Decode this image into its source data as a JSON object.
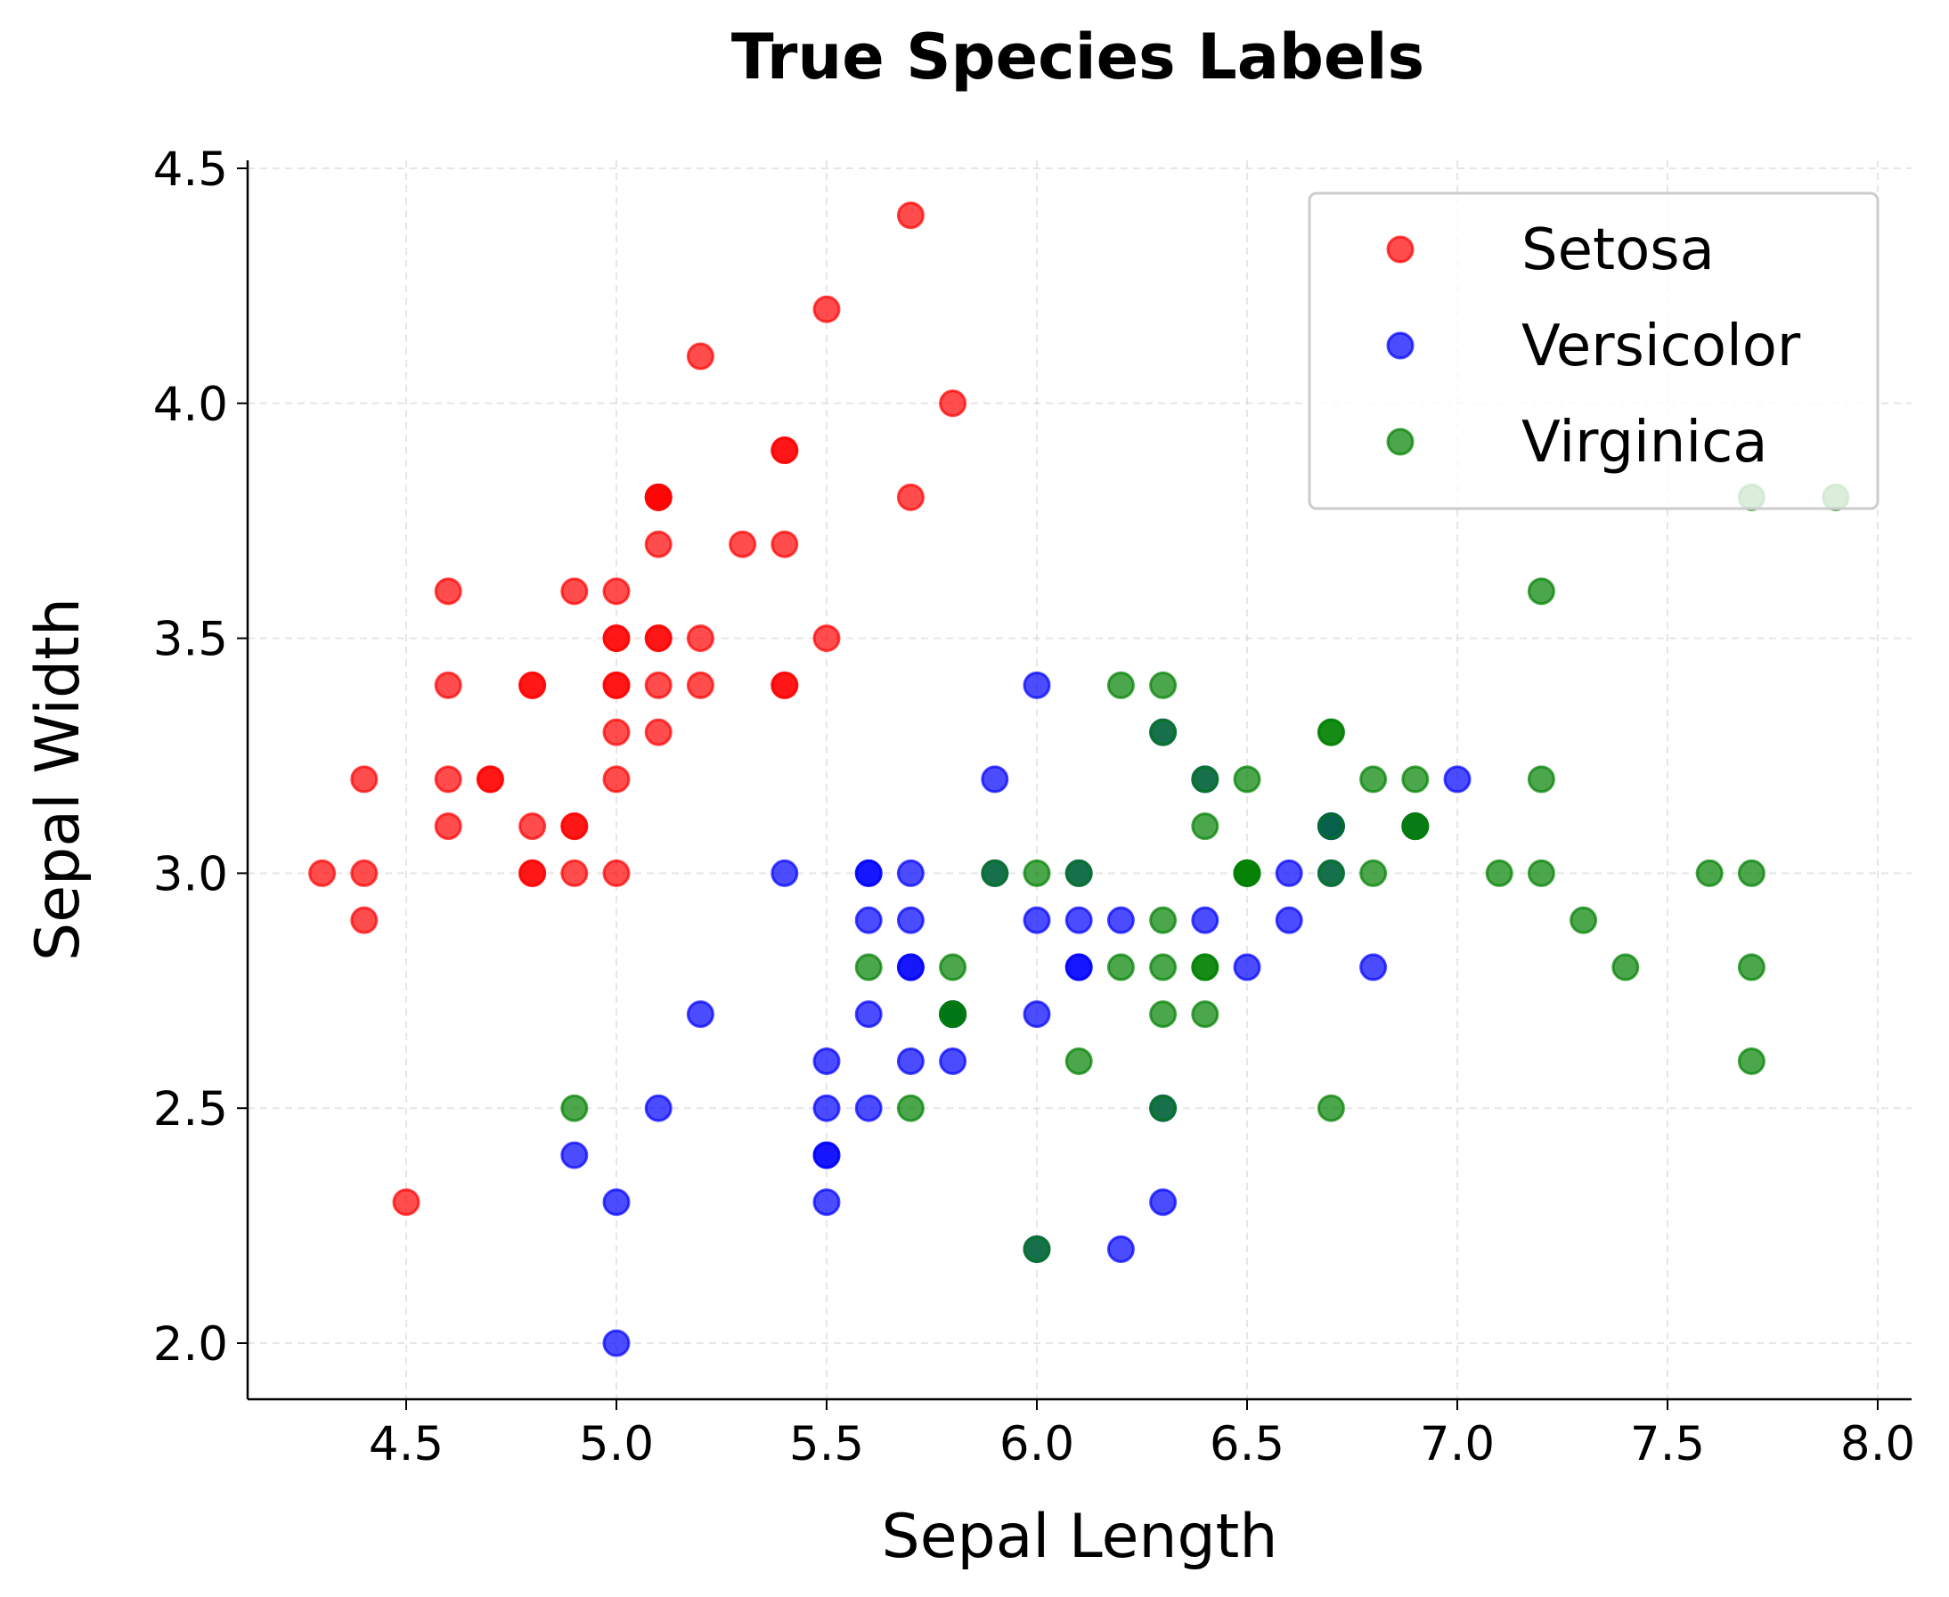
{
  "chart_data": {
    "type": "scatter",
    "title": "True Species Labels",
    "xlabel": "Sepal Length",
    "ylabel": "Sepal Width",
    "xlim": [
      4.12,
      8.08
    ],
    "ylim": [
      1.88,
      4.52
    ],
    "xticks": [
      "4.5",
      "5.0",
      "5.5",
      "6.0",
      "6.5",
      "7.0",
      "7.5",
      "8.0"
    ],
    "yticks": [
      "2.0",
      "2.5",
      "3.0",
      "3.5",
      "4.0",
      "4.5"
    ],
    "grid": true,
    "legend_position": "top-right",
    "series": [
      {
        "name": "Setosa",
        "color": "#ff0000",
        "points": [
          [
            5.1,
            3.5
          ],
          [
            4.9,
            3.0
          ],
          [
            4.7,
            3.2
          ],
          [
            4.6,
            3.1
          ],
          [
            5.0,
            3.6
          ],
          [
            5.4,
            3.9
          ],
          [
            4.6,
            3.4
          ],
          [
            5.0,
            3.4
          ],
          [
            4.4,
            2.9
          ],
          [
            4.9,
            3.1
          ],
          [
            5.4,
            3.7
          ],
          [
            4.8,
            3.4
          ],
          [
            4.8,
            3.0
          ],
          [
            4.3,
            3.0
          ],
          [
            5.8,
            4.0
          ],
          [
            5.7,
            4.4
          ],
          [
            5.4,
            3.9
          ],
          [
            5.1,
            3.5
          ],
          [
            5.7,
            3.8
          ],
          [
            5.1,
            3.8
          ],
          [
            5.4,
            3.4
          ],
          [
            5.1,
            3.7
          ],
          [
            4.6,
            3.6
          ],
          [
            5.1,
            3.3
          ],
          [
            4.8,
            3.4
          ],
          [
            5.0,
            3.0
          ],
          [
            5.0,
            3.4
          ],
          [
            5.2,
            3.5
          ],
          [
            5.2,
            3.4
          ],
          [
            4.7,
            3.2
          ],
          [
            4.8,
            3.1
          ],
          [
            5.4,
            3.4
          ],
          [
            5.2,
            4.1
          ],
          [
            5.5,
            4.2
          ],
          [
            4.9,
            3.1
          ],
          [
            5.0,
            3.2
          ],
          [
            5.5,
            3.5
          ],
          [
            4.9,
            3.6
          ],
          [
            4.4,
            3.0
          ],
          [
            5.1,
            3.4
          ],
          [
            5.0,
            3.5
          ],
          [
            4.5,
            2.3
          ],
          [
            4.4,
            3.2
          ],
          [
            5.0,
            3.5
          ],
          [
            5.1,
            3.8
          ],
          [
            4.8,
            3.0
          ],
          [
            5.1,
            3.8
          ],
          [
            4.6,
            3.2
          ],
          [
            5.3,
            3.7
          ],
          [
            5.0,
            3.3
          ]
        ]
      },
      {
        "name": "Versicolor",
        "color": "#0000ff",
        "points": [
          [
            7.0,
            3.2
          ],
          [
            6.4,
            3.2
          ],
          [
            6.9,
            3.1
          ],
          [
            5.5,
            2.3
          ],
          [
            6.5,
            2.8
          ],
          [
            5.7,
            2.8
          ],
          [
            6.3,
            3.3
          ],
          [
            4.9,
            2.4
          ],
          [
            6.6,
            2.9
          ],
          [
            5.2,
            2.7
          ],
          [
            5.0,
            2.0
          ],
          [
            5.9,
            3.0
          ],
          [
            6.0,
            2.2
          ],
          [
            6.1,
            2.9
          ],
          [
            5.6,
            2.9
          ],
          [
            6.7,
            3.1
          ],
          [
            5.6,
            3.0
          ],
          [
            5.8,
            2.7
          ],
          [
            6.2,
            2.2
          ],
          [
            5.6,
            2.5
          ],
          [
            5.9,
            3.2
          ],
          [
            6.1,
            2.8
          ],
          [
            6.3,
            2.5
          ],
          [
            6.1,
            2.8
          ],
          [
            6.4,
            2.9
          ],
          [
            6.6,
            3.0
          ],
          [
            6.8,
            2.8
          ],
          [
            6.7,
            3.0
          ],
          [
            6.0,
            2.9
          ],
          [
            5.7,
            2.6
          ],
          [
            5.5,
            2.4
          ],
          [
            5.5,
            2.4
          ],
          [
            5.8,
            2.7
          ],
          [
            6.0,
            2.7
          ],
          [
            5.4,
            3.0
          ],
          [
            6.0,
            3.4
          ],
          [
            6.7,
            3.1
          ],
          [
            6.3,
            2.3
          ],
          [
            5.6,
            3.0
          ],
          [
            5.5,
            2.5
          ],
          [
            5.5,
            2.6
          ],
          [
            6.1,
            3.0
          ],
          [
            5.8,
            2.6
          ],
          [
            5.0,
            2.3
          ],
          [
            5.6,
            2.7
          ],
          [
            5.7,
            3.0
          ],
          [
            5.7,
            2.9
          ],
          [
            6.2,
            2.9
          ],
          [
            5.1,
            2.5
          ],
          [
            5.7,
            2.8
          ]
        ]
      },
      {
        "name": "Virginica",
        "color": "#008000",
        "points": [
          [
            6.3,
            3.3
          ],
          [
            5.8,
            2.7
          ],
          [
            7.1,
            3.0
          ],
          [
            6.3,
            2.9
          ],
          [
            6.5,
            3.0
          ],
          [
            7.6,
            3.0
          ],
          [
            4.9,
            2.5
          ],
          [
            7.3,
            2.9
          ],
          [
            6.7,
            2.5
          ],
          [
            7.2,
            3.6
          ],
          [
            6.5,
            3.2
          ],
          [
            6.4,
            2.7
          ],
          [
            6.8,
            3.0
          ],
          [
            5.7,
            2.5
          ],
          [
            5.8,
            2.8
          ],
          [
            6.4,
            3.2
          ],
          [
            6.5,
            3.0
          ],
          [
            7.7,
            3.8
          ],
          [
            7.7,
            2.6
          ],
          [
            6.0,
            2.2
          ],
          [
            6.9,
            3.2
          ],
          [
            5.6,
            2.8
          ],
          [
            7.7,
            2.8
          ],
          [
            6.3,
            2.7
          ],
          [
            6.7,
            3.3
          ],
          [
            7.2,
            3.2
          ],
          [
            6.2,
            2.8
          ],
          [
            6.1,
            3.0
          ],
          [
            6.4,
            2.8
          ],
          [
            7.2,
            3.0
          ],
          [
            7.4,
            2.8
          ],
          [
            7.9,
            3.8
          ],
          [
            6.4,
            2.8
          ],
          [
            6.3,
            2.8
          ],
          [
            6.1,
            2.6
          ],
          [
            7.7,
            3.0
          ],
          [
            6.3,
            3.4
          ],
          [
            6.4,
            3.1
          ],
          [
            6.0,
            3.0
          ],
          [
            6.9,
            3.1
          ],
          [
            6.7,
            3.1
          ],
          [
            6.9,
            3.1
          ],
          [
            5.8,
            2.7
          ],
          [
            6.8,
            3.2
          ],
          [
            6.7,
            3.3
          ],
          [
            6.7,
            3.0
          ],
          [
            6.3,
            2.5
          ],
          [
            6.5,
            3.0
          ],
          [
            6.2,
            3.4
          ],
          [
            5.9,
            3.0
          ]
        ]
      }
    ]
  }
}
